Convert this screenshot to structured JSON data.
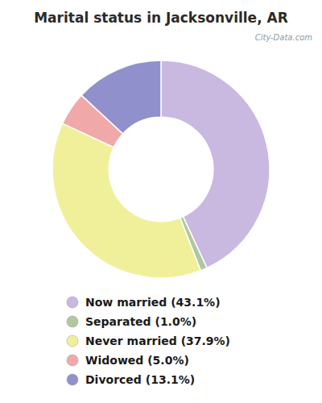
{
  "chart_data": {
    "type": "donut",
    "title": "Marital status in Jacksonville, AR",
    "categories": [
      "Now married (43.1%)",
      "Separated (1.0%)",
      "Never married (37.9%)",
      "Widowed (5.0%)",
      "Divorced (13.1%)"
    ],
    "values": [
      43.1,
      1.0,
      37.9,
      5.0,
      13.1
    ],
    "colors": [
      "#c9b8e0",
      "#b0c8a0",
      "#f0f09a",
      "#f0a8a8",
      "#9090cc"
    ],
    "legend": "bottom",
    "annotations": [
      "City-Data.com"
    ]
  }
}
